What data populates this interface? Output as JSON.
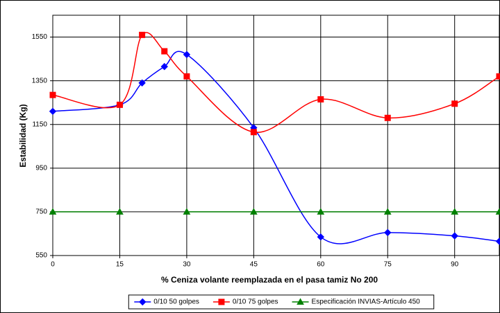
{
  "chart_data": {
    "type": "line",
    "x_label": "% Ceniza volante reemplazada en el pasa tamiz No 200",
    "y_label": "Estabilidad (Kg)",
    "x": [
      0,
      15,
      20,
      25,
      30,
      45,
      60,
      75,
      90,
      100
    ],
    "series": [
      {
        "name": "0/10 50 golpes",
        "color": "#0000ff",
        "marker": "diamond",
        "values": [
          1210,
          1240,
          1340,
          1415,
          1470,
          1135,
          635,
          655,
          640,
          615
        ]
      },
      {
        "name": "0/10 75 golpes",
        "color": "#ff0000",
        "marker": "square",
        "values": [
          1285,
          1240,
          1560,
          1485,
          1370,
          1115,
          1265,
          1180,
          1245,
          1370
        ]
      },
      {
        "name": "Especificación INVIAS-Artículo 450",
        "color": "#008000",
        "marker": "triangle",
        "values": [
          750,
          750,
          null,
          null,
          750,
          750,
          750,
          750,
          750,
          750
        ]
      }
    ],
    "xlim": [
      0,
      100
    ],
    "ylim": [
      550,
      1650
    ],
    "xticks": [
      0,
      15,
      30,
      45,
      60,
      75,
      90
    ],
    "yticks": [
      550,
      750,
      950,
      1150,
      1350,
      1550
    ],
    "grid": true,
    "legend": "bottom"
  }
}
